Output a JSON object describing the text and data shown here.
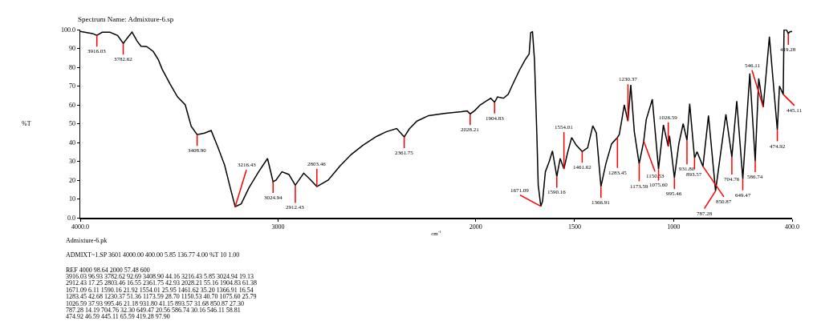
{
  "chart_data": {
    "type": "line",
    "title": "Spectrum Name: Admixture-6.sp",
    "xlabel": "cm$^{-1}$",
    "ylabel": "%T",
    "xlim": [
      4000,
      400
    ],
    "xticks": [
      {
        "value": 4000,
        "label": "4000.0"
      },
      3000,
      2000,
      1500,
      1000,
      {
        "value": 400,
        "label": "400.0"
      }
    ],
    "ylim": [
      0,
      100
    ],
    "yticks": [
      {
        "value": 0,
        "label": "0.0"
      },
      10,
      20,
      30,
      40,
      50,
      60,
      70,
      80,
      90,
      {
        "value": 100,
        "label": "100.0"
      }
    ],
    "grid": false,
    "marker": "none",
    "line_style": "solid",
    "series": [
      {
        "color": "#000000",
        "x": [
          4000,
          3938,
          3916.03,
          3889,
          3850,
          3811,
          3782.62,
          3762,
          3738,
          3713,
          3693,
          3664,
          3631,
          3605,
          3586,
          3547,
          3508,
          3469,
          3439,
          3408.9,
          3371,
          3338,
          3303,
          3270,
          3238,
          3216.43,
          3186,
          3147,
          3098,
          3053,
          3024.94,
          3010,
          2980,
          2945,
          2912.43,
          2870,
          2834,
          2803.46,
          2746,
          2688,
          2629,
          2570,
          2502,
          2453,
          2400,
          2361.75,
          2336,
          2297,
          2238,
          2160,
          2072,
          2043,
          2028.21,
          2004,
          1977,
          1948,
          1924,
          1904.83,
          1890,
          1860,
          1836,
          1808,
          1779,
          1750,
          1730,
          1722,
          1713,
          1703,
          1691,
          1684,
          1671.09,
          1662,
          1648,
          1628,
          1612,
          1590.16,
          1573,
          1554.01,
          1536,
          1515,
          1492,
          1461.62,
          1434,
          1408,
          1390,
          1366.91,
          1342,
          1313,
          1283.45,
          1274,
          1260,
          1249,
          1230.37,
          1216,
          1198,
          1173.59,
          1150.53,
          1138,
          1107,
          1075.6,
          1051,
          1026.59,
          1020,
          995.46,
          973,
          951,
          931.8,
          918,
          893.57,
          881,
          850.87,
          823,
          787.28,
          735,
          704.76,
          680,
          649.47,
          614,
          586.74,
          569,
          546.11,
          515,
          474.92,
          464,
          445.11,
          441,
          430,
          419.28,
          412,
          400
        ],
        "values": [
          99,
          97.9,
          96.93,
          98.6,
          98.6,
          96.9,
          92.69,
          95.5,
          98.7,
          94,
          91.2,
          91,
          88.4,
          84,
          79,
          71.3,
          64.2,
          60,
          48.6,
          44.16,
          45,
          46.4,
          37.2,
          28,
          14.5,
          5.85,
          7.4,
          15.9,
          24.4,
          31.5,
          19.13,
          20,
          24.4,
          23,
          17.25,
          23.7,
          20,
          16.55,
          20,
          27.3,
          33.7,
          38.6,
          43.2,
          45.7,
          47.4,
          42.93,
          47.2,
          51.4,
          54.3,
          55.4,
          56.4,
          56.8,
          55.16,
          57.1,
          60,
          62,
          63.5,
          61.38,
          64.2,
          63.5,
          65.6,
          72,
          78.4,
          84,
          87,
          98.3,
          99,
          84,
          44.3,
          17.3,
          6.11,
          8.8,
          24.4,
          30,
          35.5,
          21.92,
          31.5,
          25.95,
          34.4,
          42.6,
          38.6,
          35.2,
          37.2,
          48.9,
          45,
          16.54,
          28.7,
          39.3,
          42.68,
          44.3,
          52.8,
          60,
          51.36,
          70.6,
          45.7,
          28.7,
          40.7,
          52.1,
          63,
          25.79,
          49.3,
          37.93,
          43.6,
          21.18,
          39.3,
          50,
          41.15,
          60.6,
          31.68,
          35.1,
          27.3,
          54.3,
          14.19,
          55,
          32.3,
          62,
          20.56,
          76.7,
          30.16,
          74,
          58.81,
          96.2,
          46.59,
          70,
          65.59,
          99.7,
          100,
          97.9,
          98.8,
          99
        ]
      }
    ],
    "annotations": [
      {
        "text": "3916.03",
        "x": 3916.03,
        "y": 96.93
      },
      {
        "text": "3782.62",
        "x": 3782.62,
        "y": 92.69
      },
      {
        "text": "3408.90",
        "x": 3408.9,
        "y": 44.16
      },
      {
        "text": "3216.43",
        "x": 3216.43,
        "y": 5.85
      },
      {
        "text": "3024.94",
        "x": 3024.94,
        "y": 19.13
      },
      {
        "text": "2912.43",
        "x": 2912.43,
        "y": 17.25
      },
      {
        "text": "2803.46",
        "x": 2803.46,
        "y": 16.55
      },
      {
        "text": "2361.75",
        "x": 2361.75,
        "y": 42.93
      },
      {
        "text": "2028.21",
        "x": 2028.21,
        "y": 55.16
      },
      {
        "text": "1904.83",
        "x": 1904.83,
        "y": 61.38
      },
      {
        "text": "1671.09",
        "x": 1671.09,
        "y": 6.11
      },
      {
        "text": "1590.16",
        "x": 1590.16,
        "y": 21.92
      },
      {
        "text": "1554.01",
        "x": 1554.01,
        "y": 25.95
      },
      {
        "text": "1461.62",
        "x": 1461.62,
        "y": 35.2
      },
      {
        "text": "1366.91",
        "x": 1366.91,
        "y": 16.54
      },
      {
        "text": "1283.45",
        "x": 1283.45,
        "y": 42.68
      },
      {
        "text": "1230.37",
        "x": 1230.37,
        "y": 51.36
      },
      {
        "text": "1173.59",
        "x": 1173.59,
        "y": 28.7
      },
      {
        "text": "1150.53",
        "x": 1150.53,
        "y": 40.7
      },
      {
        "text": "1075.60",
        "x": 1075.6,
        "y": 25.79
      },
      {
        "text": "1026.59",
        "x": 1026.59,
        "y": 37.93
      },
      {
        "text": "995.46",
        "x": 995.46,
        "y": 21.18
      },
      {
        "text": "931.80",
        "x": 931.8,
        "y": 41.15
      },
      {
        "text": "893.57",
        "x": 893.57,
        "y": 31.68
      },
      {
        "text": "850.87",
        "x": 850.87,
        "y": 27.3
      },
      {
        "text": "787.28",
        "x": 787.28,
        "y": 14.19
      },
      {
        "text": "704.76",
        "x": 704.76,
        "y": 32.3
      },
      {
        "text": "649.47",
        "x": 649.47,
        "y": 20.56
      },
      {
        "text": "586.74",
        "x": 586.74,
        "y": 30.16
      },
      {
        "text": "546.11",
        "x": 546.11,
        "y": 58.81
      },
      {
        "text": "474.92",
        "x": 474.92,
        "y": 46.59
      },
      {
        "text": "445.11",
        "x": 445.11,
        "y": 65.59
      },
      {
        "text": "419.28",
        "x": 419.28,
        "y": 97.9
      },
      "Admixture-6.pk",
      "ADMIXT~1.SP 3601 4000.00 400.00 5.85 136.77 4.00 %T 10 1.00",
      "REF 4000 98.64 2000 57.48 600",
      "3916.03 96.93 3782.62 92.69 3408.90 44.16 3216.43 5.85 3024.94 19.13",
      "2912.43 17.25 2803.46 16.55 2361.75 42.93 2028.21 55.16 1904.83 61.38",
      "1671.09 6.11 1590.16 21.92 1554.01 25.95 1461.62 35.20 1366.91 16.54",
      "1283.45 42.68 1230.37 51.36 1173.59 28.70 1150.53 40.70 1075.60 25.79",
      "1026.59 37.93 995.46 21.18 931.80 41.15 893.57 31.68 850.87 27.30",
      "787.28 14.19 704.76 32.30 649.47 20.56 586.74 30.16 546.11 58.81",
      "474.92 46.59 445.11 65.59 419.28 97.90"
    ]
  }
}
